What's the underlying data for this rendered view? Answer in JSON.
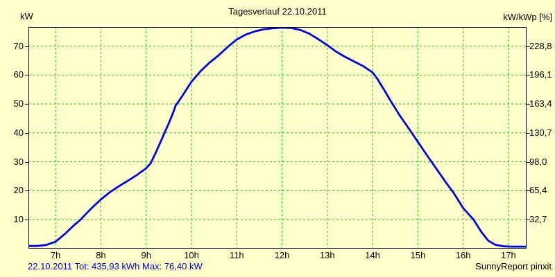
{
  "title": "Tagesverlauf 22.10.2011",
  "axes": {
    "left_unit": "kW",
    "right_unit": "kW/kWp [%]"
  },
  "footer": {
    "summary": "22.10.2011 Tot: 435,93 kWh Max: 76,40 kW",
    "credit": "SunnyReport pinxit"
  },
  "colors": {
    "background": "#ffffcc",
    "grid": "#00cc00",
    "curve": "#0000e0",
    "border": "#000000",
    "summary_text": "#0000cc"
  },
  "chart_data": {
    "type": "line",
    "title": "Tagesverlauf 22.10.2011",
    "date": "22.10.2011",
    "total_kwh": "435,93",
    "max_kw": "76,40",
    "ylabel_left": "kW",
    "ylabel_right": "kW/kWp [%]",
    "grid": true,
    "grid_style": "dashed green",
    "legend": "none",
    "x_range_hours": [
      6.4,
      17.4
    ],
    "y_range_kw": [
      0,
      76.6
    ],
    "x_ticks": [
      {
        "hour": 7,
        "label": "7h"
      },
      {
        "hour": 8,
        "label": "8h"
      },
      {
        "hour": 9,
        "label": "9h"
      },
      {
        "hour": 10,
        "label": "10h"
      },
      {
        "hour": 11,
        "label": "11h"
      },
      {
        "hour": 12,
        "label": "12h"
      },
      {
        "hour": 13,
        "label": "13h"
      },
      {
        "hour": 14,
        "label": "14h"
      },
      {
        "hour": 15,
        "label": "15h"
      },
      {
        "hour": 16,
        "label": "16h"
      },
      {
        "hour": 17,
        "label": "17h"
      }
    ],
    "y_ticks": [
      {
        "kw": 70,
        "left_label": "70",
        "right_label": "228,8"
      },
      {
        "kw": 60,
        "left_label": "60",
        "right_label": "196,1"
      },
      {
        "kw": 50,
        "left_label": "50",
        "right_label": "163,4"
      },
      {
        "kw": 40,
        "left_label": "40",
        "right_label": "130,7"
      },
      {
        "kw": 30,
        "left_label": "30",
        "right_label": "98,0"
      },
      {
        "kw": 20,
        "left_label": "20",
        "right_label": "65,4"
      },
      {
        "kw": 10,
        "left_label": "10",
        "right_label": "32,7"
      }
    ],
    "series": [
      {
        "name": "kW",
        "points": [
          [
            6.4,
            0.9
          ],
          [
            6.6,
            0.9
          ],
          [
            6.8,
            1.3
          ],
          [
            7.0,
            2.4
          ],
          [
            7.2,
            5.0
          ],
          [
            7.4,
            8.0
          ],
          [
            7.55,
            10.0
          ],
          [
            7.7,
            12.5
          ],
          [
            7.85,
            14.8
          ],
          [
            8.0,
            17.0
          ],
          [
            8.2,
            19.5
          ],
          [
            8.4,
            21.6
          ],
          [
            8.6,
            23.5
          ],
          [
            8.8,
            25.5
          ],
          [
            9.0,
            27.8
          ],
          [
            9.1,
            29.5
          ],
          [
            9.2,
            32.8
          ],
          [
            9.3,
            36.3
          ],
          [
            9.4,
            39.8
          ],
          [
            9.5,
            43.3
          ],
          [
            9.6,
            47.2
          ],
          [
            9.65,
            49.4
          ],
          [
            9.8,
            52.8
          ],
          [
            10.0,
            57.7
          ],
          [
            10.2,
            61.3
          ],
          [
            10.4,
            64.3
          ],
          [
            10.6,
            66.8
          ],
          [
            10.8,
            69.7
          ],
          [
            11.0,
            72.3
          ],
          [
            11.2,
            74.0
          ],
          [
            11.4,
            75.1
          ],
          [
            11.6,
            75.8
          ],
          [
            11.8,
            76.2
          ],
          [
            12.0,
            76.4
          ],
          [
            12.2,
            76.3
          ],
          [
            12.4,
            75.6
          ],
          [
            12.6,
            74.3
          ],
          [
            12.8,
            72.4
          ],
          [
            13.0,
            70.3
          ],
          [
            13.2,
            68.0
          ],
          [
            13.4,
            66.2
          ],
          [
            13.6,
            64.6
          ],
          [
            13.8,
            63.0
          ],
          [
            14.0,
            60.9
          ],
          [
            14.1,
            58.8
          ],
          [
            14.25,
            55.0
          ],
          [
            14.4,
            51.0
          ],
          [
            14.6,
            46.0
          ],
          [
            14.8,
            41.5
          ],
          [
            15.0,
            36.9
          ],
          [
            15.2,
            32.3
          ],
          [
            15.4,
            27.8
          ],
          [
            15.6,
            23.3
          ],
          [
            15.8,
            19.0
          ],
          [
            16.0,
            14.0
          ],
          [
            16.23,
            10.0
          ],
          [
            16.4,
            5.8
          ],
          [
            16.55,
            2.8
          ],
          [
            16.7,
            1.4
          ],
          [
            16.9,
            0.8
          ],
          [
            17.1,
            0.7
          ],
          [
            17.4,
            0.7
          ]
        ]
      }
    ]
  }
}
